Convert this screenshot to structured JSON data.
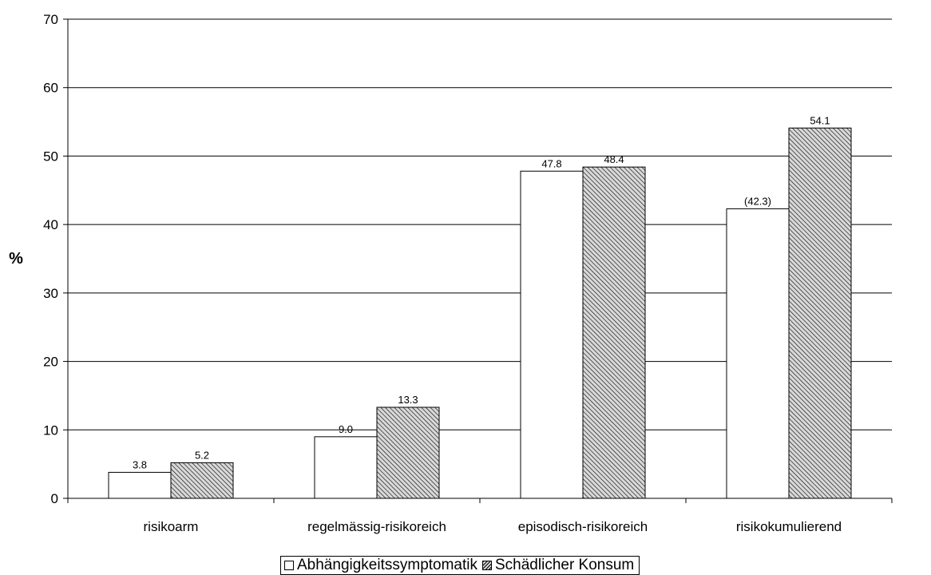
{
  "chart_data": {
    "type": "bar",
    "categories": [
      "risikoarm",
      "regelmässig-risikoreich",
      "episodisch-risikoreich",
      "risikokumulierend"
    ],
    "series": [
      {
        "name": "Abhängigkeitssymptomatik",
        "values": [
          3.8,
          9.0,
          47.8,
          42.3
        ],
        "labels": [
          "3.8",
          "9.0",
          "47.8",
          "(42.3)"
        ],
        "fill": "white"
      },
      {
        "name": "Schädlicher Konsum",
        "values": [
          5.2,
          13.3,
          48.4,
          54.1
        ],
        "labels": [
          "5.2",
          "13.3",
          "48.4",
          "54.1"
        ],
        "fill": "hatched"
      }
    ],
    "title": "",
    "xlabel": "",
    "ylabel": "%",
    "ylim": [
      0,
      70
    ],
    "yticks": [
      0,
      10,
      20,
      30,
      40,
      50,
      60,
      70
    ],
    "grid": true,
    "legend_position": "bottom",
    "colors": {
      "bar_outline": "#000000",
      "series1_fill": "#ffffff",
      "hatch": "#000000",
      "hatch_background": "#d8d8d8",
      "gridline": "#000000"
    }
  }
}
